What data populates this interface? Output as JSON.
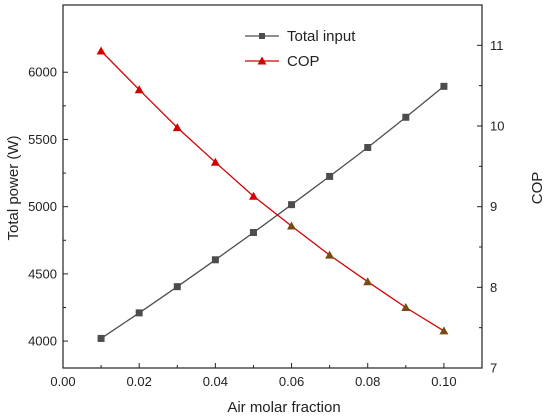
{
  "chart_data": {
    "type": "line",
    "title": "",
    "xlabel": "Air molar fraction",
    "ylabel_left": "Total power (W)",
    "ylabel_right": "COP",
    "xlim": [
      0.0,
      0.11
    ],
    "ylim_left": [
      3800,
      6500
    ],
    "ylim_right": [
      7,
      11.5
    ],
    "x_ticks": [
      "0.00",
      "0.02",
      "0.04",
      "0.06",
      "0.08",
      "0.10"
    ],
    "y_left_ticks": [
      "4000",
      "4500",
      "5000",
      "5500",
      "6000"
    ],
    "y_right_ticks": [
      "7",
      "8",
      "9",
      "10",
      "11"
    ],
    "x": [
      0.01,
      0.02,
      0.03,
      0.04,
      0.05,
      0.06,
      0.07,
      0.08,
      0.09,
      0.1
    ],
    "legend_position": "top-center",
    "grid": false,
    "series": [
      {
        "name": "Total input",
        "axis": "left",
        "marker": "square",
        "color": "#4d4d4d",
        "values": [
          4020,
          4210,
          4405,
          4605,
          4808,
          5015,
          5225,
          5440,
          5665,
          5895
        ]
      },
      {
        "name": "COP",
        "axis": "right",
        "marker": "triangle",
        "color": "#d40000",
        "values": [
          10.93,
          10.45,
          9.98,
          9.55,
          9.13,
          8.76,
          8.4,
          8.07,
          7.75,
          7.46
        ]
      }
    ]
  }
}
